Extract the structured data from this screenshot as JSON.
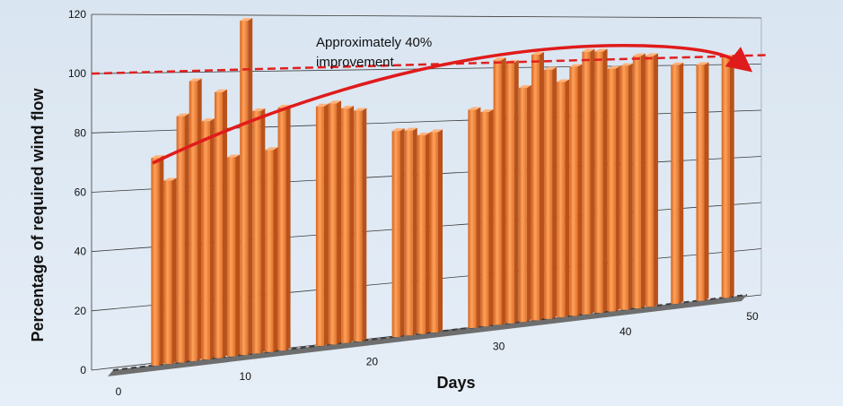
{
  "chart_data": {
    "type": "bar",
    "xlabel": "Days",
    "ylabel": "Percentage of required wind flow",
    "ylim": [
      0,
      120
    ],
    "xlim": [
      0,
      50
    ],
    "y_ticks": [
      "0",
      "20",
      "40",
      "60",
      "80",
      "100",
      "120"
    ],
    "x_ticks": [
      "0",
      "10",
      "20",
      "30",
      "40",
      "50"
    ],
    "grid": true,
    "reference_line": {
      "y": 100,
      "style": "dashed",
      "color": "#e02020"
    },
    "annotation": {
      "lines": [
        "Approximately 40%",
        "improvement"
      ],
      "arrow": "curved, from left to right"
    },
    "bar_color": "#f08a3c",
    "series": [
      {
        "x": [
          3,
          4,
          5,
          6,
          7,
          8,
          9,
          10,
          11,
          12,
          13,
          16,
          17,
          18,
          19,
          22,
          23,
          24,
          25,
          28,
          29,
          30,
          31,
          32,
          33,
          34,
          35,
          36,
          37,
          38,
          39,
          40,
          41,
          42,
          44,
          46,
          48
        ],
        "values": [
          71,
          63,
          85,
          97,
          83,
          93,
          70,
          118,
          86,
          72,
          87,
          87,
          88,
          86,
          85,
          77,
          77,
          75,
          76,
          84,
          83,
          103,
          102,
          92,
          105,
          99,
          94,
          100,
          106,
          106,
          99,
          100,
          104,
          104,
          100,
          100,
          103
        ]
      }
    ]
  }
}
